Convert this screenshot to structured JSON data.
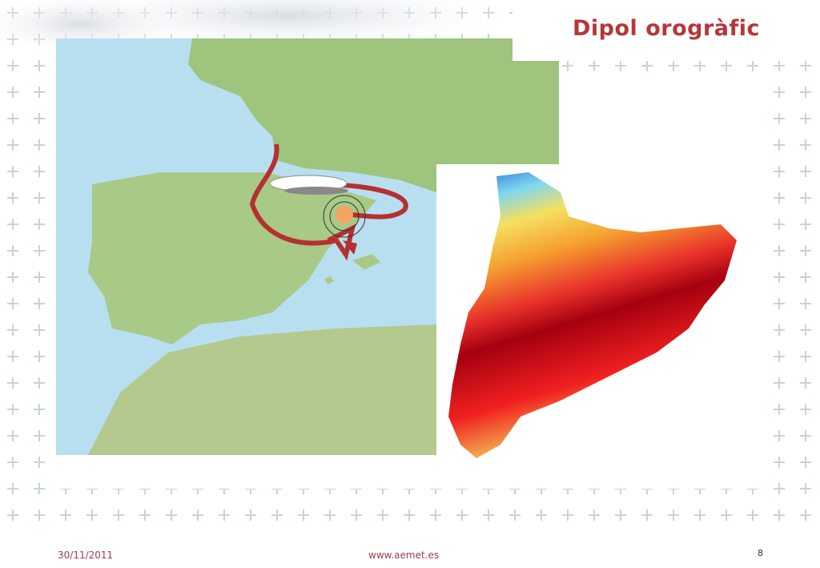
{
  "header": {
    "title": "Dipol orogràfic"
  },
  "footer": {
    "date": "30/11/2011",
    "website": "www.aemet.es",
    "page_number": "8"
  }
}
